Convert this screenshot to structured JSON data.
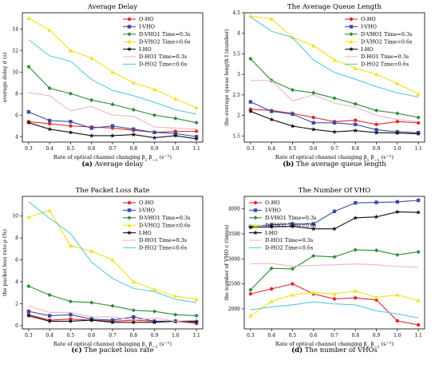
{
  "figure": {
    "captions": [
      {
        "letter": "(a)",
        "text": "Average delay"
      },
      {
        "letter": "(b)",
        "text": "The average queue length"
      },
      {
        "letter": "(c)",
        "text": "The packet loss rate"
      },
      {
        "letter": "(d)",
        "text": "The number of VHOs"
      }
    ]
  },
  "series_style": [
    {
      "name": "O-HO",
      "color": "#e0292f",
      "marker": "circle"
    },
    {
      "name": "I-VHO",
      "color": "#3a4ea6",
      "marker": "square"
    },
    {
      "name": "D-VHO1 Time=0.3s",
      "color": "#2e8b3a",
      "marker": "diamond"
    },
    {
      "name": "D-VHO2 Time=0.6s",
      "color": "#f2e21b",
      "marker": "triangle"
    },
    {
      "name": "I-HO",
      "color": "#111111",
      "marker": "star"
    },
    {
      "name": "D-HO1 Time=0.3s",
      "color": "#f2b6c2",
      "marker": "none"
    },
    {
      "name": "D-HO2 Time=0.6s",
      "color": "#5ec8e0",
      "marker": "none"
    }
  ],
  "chart_data": [
    {
      "type": "line",
      "title": "Average Delay",
      "xlabel": "Rate of optical channel changing β1 β−1 (s−1)",
      "ylabel": "average delay d (s)",
      "x": [
        0.3,
        0.4,
        0.5,
        0.6,
        0.7,
        0.8,
        0.9,
        1.0,
        1.1
      ],
      "xlim": [
        0.27,
        1.13
      ],
      "ylim": [
        3.5,
        15.5
      ],
      "yticks": [
        4,
        6,
        8,
        10,
        12,
        14
      ],
      "legend": "top-right",
      "series": [
        {
          "name": "O-HO",
          "values": [
            5.4,
            5.2,
            5.0,
            4.9,
            4.8,
            4.6,
            4.4,
            4.5,
            4.5
          ]
        },
        {
          "name": "I-VHO",
          "values": [
            6.3,
            5.5,
            5.4,
            4.8,
            5.0,
            4.7,
            4.4,
            4.3,
            4.0
          ]
        },
        {
          "name": "D-VHO1 Time=0.3s",
          "values": [
            10.5,
            8.5,
            8.0,
            7.4,
            7.0,
            6.5,
            6.0,
            5.7,
            5.3
          ]
        },
        {
          "name": "D-VHO2 Time=0.6s",
          "values": [
            15.0,
            13.9,
            12.0,
            11.3,
            10.0,
            9.0,
            8.4,
            7.5,
            6.7
          ]
        },
        {
          "name": "I-HO",
          "values": [
            5.3,
            4.7,
            4.4,
            4.1,
            4.1,
            4.2,
            3.9,
            4.1,
            3.8
          ]
        },
        {
          "name": "D-HO1 Time=0.3s",
          "values": [
            8.1,
            7.8,
            6.4,
            6.8,
            6.0,
            5.9,
            4.9,
            4.8,
            4.7
          ]
        },
        {
          "name": "D-HO2 Time=0.6s",
          "values": [
            13.0,
            11.5,
            11.0,
            9.3,
            8.3,
            7.8,
            7.2,
            6.5,
            6.1
          ]
        }
      ]
    },
    {
      "type": "line",
      "title": "The Average Queue Length",
      "xlabel": "Rate of optical channel changing β1 β−1 (s−1)",
      "ylabel": "the average queue length l (number)",
      "x": [
        0.3,
        0.4,
        0.5,
        0.6,
        0.7,
        0.8,
        0.9,
        1.0,
        1.1
      ],
      "xlim": [
        0.27,
        1.13
      ],
      "ylim": [
        1.35,
        4.5
      ],
      "yticks": [
        1.5,
        2.0,
        2.5,
        3.0,
        3.5,
        4.0,
        4.5
      ],
      "legend": "top-right",
      "series": [
        {
          "name": "O-HO",
          "values": [
            2.15,
            2.12,
            2.05,
            1.95,
            1.85,
            1.88,
            1.78,
            1.85,
            1.82
          ]
        },
        {
          "name": "I-VHO",
          "values": [
            2.33,
            2.1,
            2.03,
            1.82,
            1.82,
            1.78,
            1.65,
            1.6,
            1.58
          ]
        },
        {
          "name": "D-VHO1 Time=0.3s",
          "values": [
            3.38,
            2.85,
            2.62,
            2.55,
            2.42,
            2.28,
            2.12,
            2.05,
            1.95
          ]
        },
        {
          "name": "D-VHO2 Time=0.6s",
          "values": [
            4.42,
            4.35,
            3.9,
            3.7,
            3.35,
            3.15,
            3.0,
            2.78,
            2.52
          ]
        },
        {
          "name": "I-HO",
          "values": [
            2.1,
            1.9,
            1.74,
            1.66,
            1.6,
            1.63,
            1.58,
            1.57,
            1.55
          ]
        },
        {
          "name": "D-HO1 Time=0.3s",
          "values": [
            2.85,
            2.85,
            2.35,
            2.5,
            2.3,
            2.2,
            2.0,
            1.9,
            1.85
          ]
        },
        {
          "name": "D-HO2 Time=0.6s",
          "values": [
            4.4,
            4.05,
            3.9,
            3.35,
            3.05,
            2.88,
            2.7,
            2.55,
            2.45
          ]
        }
      ]
    },
    {
      "type": "line",
      "title": "The Packet Loss Rate",
      "xlabel": "Rate of optical channel changing β1 β−1 (s−1)",
      "ylabel": "the packet loss rate ρ (%)",
      "x": [
        0.3,
        0.4,
        0.5,
        0.6,
        0.7,
        0.8,
        0.9,
        1.0,
        1.1
      ],
      "xlim": [
        0.27,
        1.13
      ],
      "ylim": [
        -0.3,
        11.8
      ],
      "yticks": [
        0,
        2,
        4,
        6,
        8,
        10
      ],
      "legend": "top-right",
      "series": [
        {
          "name": "O-HO",
          "values": [
            1.0,
            0.5,
            0.6,
            0.5,
            0.4,
            0.5,
            0.4,
            0.4,
            0.2
          ]
        },
        {
          "name": "I-VHO",
          "values": [
            1.3,
            0.9,
            1.0,
            0.6,
            0.5,
            0.8,
            0.4,
            0.4,
            0.3
          ]
        },
        {
          "name": "D-VHO1 Time=0.3s",
          "values": [
            3.6,
            2.8,
            2.2,
            2.1,
            1.8,
            1.4,
            1.3,
            1.0,
            0.9
          ]
        },
        {
          "name": "D-VHO2 Time=0.6s",
          "values": [
            9.9,
            10.5,
            7.3,
            6.8,
            6.0,
            4.0,
            3.3,
            2.7,
            2.4
          ]
        },
        {
          "name": "I-HO",
          "values": [
            0.9,
            0.4,
            0.4,
            0.5,
            0.3,
            0.3,
            0.3,
            0.4,
            0.4
          ]
        },
        {
          "name": "D-HO1 Time=0.3s",
          "values": [
            1.8,
            1.2,
            1.2,
            0.8,
            0.8,
            0.5,
            0.7,
            0.4,
            0.5
          ]
        },
        {
          "name": "D-HO2 Time=0.6s",
          "values": [
            11.3,
            9.8,
            8.4,
            5.8,
            4.3,
            3.4,
            3.1,
            2.4,
            2.1
          ]
        }
      ]
    },
    {
      "type": "line",
      "title": "The Number Of VHO",
      "xlabel": "Rate of optical channel changing β1 β−1 (s−1)",
      "ylabel": "the number of VHO c (times)",
      "x": [
        0.3,
        0.4,
        0.5,
        0.6,
        0.7,
        0.8,
        0.9,
        1.0,
        1.1
      ],
      "xlim": [
        0.27,
        1.13
      ],
      "ylim": [
        1600,
        4250
      ],
      "yticks": [
        2000,
        2500,
        3000,
        3500,
        4000
      ],
      "legend": "top-left",
      "series": [
        {
          "name": "O-HO",
          "values": [
            2300,
            2400,
            2500,
            2300,
            2200,
            2220,
            2180,
            1760,
            1680
          ]
        },
        {
          "name": "I-VHO",
          "values": [
            3650,
            3680,
            3700,
            3700,
            3950,
            4120,
            4130,
            4140,
            4170
          ]
        },
        {
          "name": "D-VHO1 Time=0.3s",
          "values": [
            2380,
            2810,
            2800,
            3060,
            3040,
            3180,
            3170,
            3080,
            3140
          ]
        },
        {
          "name": "D-VHO2 Time=0.6s",
          "values": [
            1860,
            2150,
            2280,
            2330,
            2300,
            2360,
            2230,
            2280,
            2170
          ]
        },
        {
          "name": "I-HO",
          "values": [
            3630,
            3640,
            3650,
            3600,
            3600,
            3820,
            3840,
            3940,
            3930
          ]
        },
        {
          "name": "D-HO1 Time=0.3s",
          "values": [
            2900,
            2910,
            2850,
            2870,
            2880,
            2900,
            2880,
            2850,
            2830
          ]
        },
        {
          "name": "D-HO2 Time=0.6s",
          "values": [
            1980,
            2040,
            2080,
            2140,
            2100,
            2080,
            1960,
            1900,
            1820
          ]
        }
      ]
    }
  ]
}
